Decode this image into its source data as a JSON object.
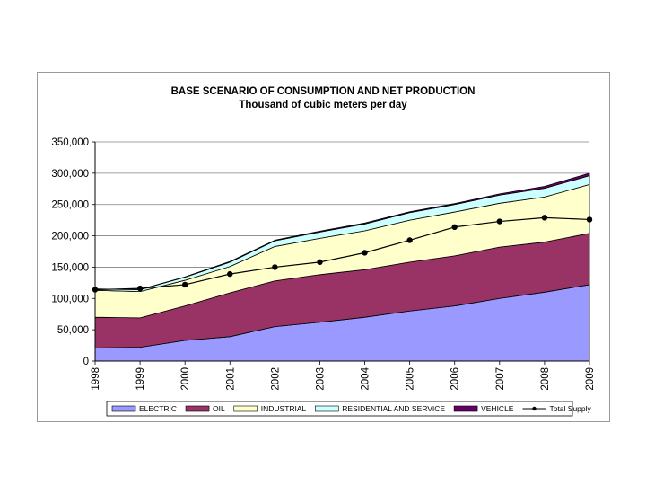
{
  "chart_data": {
    "type": "area",
    "title": "BASE SCENARIO OF CONSUMPTION AND NET PRODUCTION",
    "subtitle": "Thousand of cubic meters per day",
    "xlabel": "",
    "ylabel": "",
    "ylim": [
      0,
      350000
    ],
    "y_ticks": [
      0,
      50000,
      100000,
      150000,
      200000,
      250000,
      300000,
      350000
    ],
    "y_tick_labels": [
      "0",
      "50,000",
      "100,000",
      "150,000",
      "200,000",
      "250,000",
      "300,000",
      "350,000"
    ],
    "categories": [
      "1998",
      "1999",
      "2000",
      "2001",
      "2002",
      "2003",
      "2004",
      "2005",
      "2006",
      "2007",
      "2008",
      "2009"
    ],
    "stacked": true,
    "grid": true,
    "legend_position": "bottom",
    "series": [
      {
        "name": "ELECTRIC",
        "color": "#9999ff",
        "values": [
          21000,
          22000,
          33000,
          39000,
          55000,
          62000,
          70000,
          80000,
          88000,
          100000,
          110000,
          122000
        ]
      },
      {
        "name": "OIL",
        "color": "#993366",
        "values": [
          49000,
          47000,
          55000,
          70000,
          73000,
          76000,
          76000,
          78000,
          80000,
          82000,
          80000,
          82000
        ]
      },
      {
        "name": "INDUSTRIAL",
        "color": "#ffffcc",
        "values": [
          43000,
          42000,
          41000,
          42000,
          55000,
          58000,
          62000,
          67000,
          70000,
          70000,
          72000,
          78000
        ]
      },
      {
        "name": "RESIDENTIAL AND SERVICE",
        "color": "#ccffff",
        "values": [
          2000,
          3000,
          5000,
          7000,
          9000,
          10000,
          11000,
          12000,
          12000,
          13000,
          14000,
          14000
        ]
      },
      {
        "name": "VEHICLE",
        "color": "#660066",
        "values": [
          200,
          300,
          500,
          1000,
          1000,
          1500,
          1500,
          1500,
          1500,
          2000,
          3000,
          4000
        ]
      }
    ],
    "line_series": {
      "name": "Total Supply",
      "color": "#000000",
      "values": [
        114000,
        116000,
        122000,
        139000,
        150000,
        158000,
        173000,
        193000,
        214000,
        223000,
        229000,
        226000
      ]
    }
  }
}
